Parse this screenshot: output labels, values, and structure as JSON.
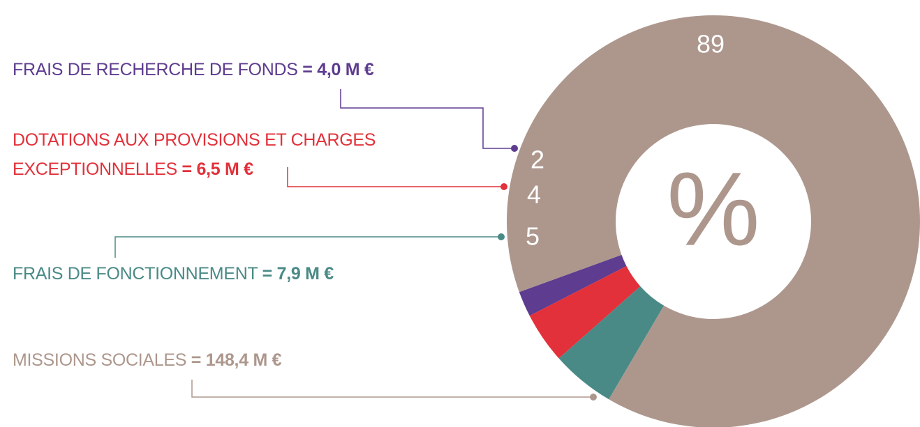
{
  "chart_data": {
    "type": "donut",
    "categories": [
      "FRAIS DE RECHERCHE DE FONDS",
      "DOTATIONS AUX PROVISIONS ET CHARGES EXCEPTIONNELLES",
      "FRAIS DE FONCTIONNEMENT",
      "MISSIONS SOCIALES"
    ],
    "values": [
      2,
      4,
      5,
      89
    ],
    "amount_labels": [
      "= 4,0 M €",
      "= 6,5 M €",
      "= 7,9 M €",
      "= 148,4 M €"
    ],
    "colors": [
      "#5e3c8f",
      "#e2313a",
      "#4a8a86",
      "#ad978d"
    ],
    "center_label": "%"
  }
}
